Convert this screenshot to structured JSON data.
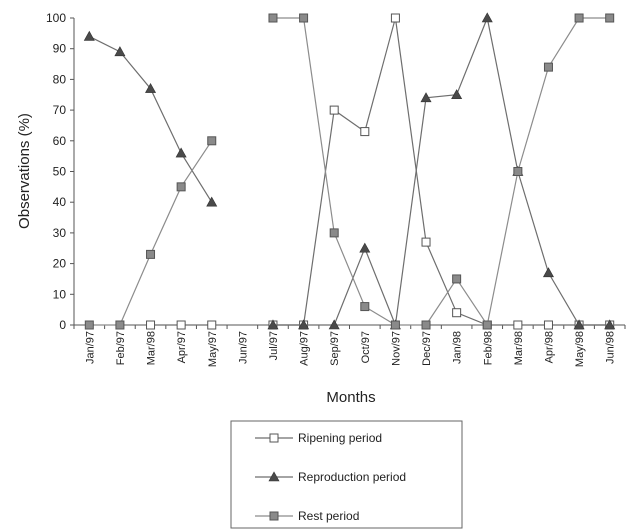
{
  "chart_data": {
    "type": "line",
    "xlabel": "Months",
    "ylabel": "Observations (%)",
    "ylim": [
      0,
      100
    ],
    "yticks": [
      0,
      10,
      20,
      30,
      40,
      50,
      60,
      70,
      80,
      90,
      100
    ],
    "categories": [
      "Jan/97",
      "Feb/97",
      "Mar/98",
      "Apr/97",
      "May/97",
      "Jun/97",
      "Jul/97",
      "Aug/97",
      "Sep/97",
      "Oct/97",
      "Nov/97",
      "Dec/97",
      "Jan/98",
      "Feb/98",
      "Mar/98",
      "Apr/98",
      "May/98",
      "Jun/98"
    ],
    "grid": false,
    "legend_position": "bottom-center",
    "series": [
      {
        "name": "Ripening period",
        "marker": "square-open",
        "color": "#6e6e6e",
        "values": [
          null,
          null,
          0,
          0,
          0,
          null,
          0,
          0,
          70,
          63,
          100,
          27,
          4,
          0,
          0,
          0,
          0,
          0
        ]
      },
      {
        "name": "Reproduction period",
        "marker": "triangle-filled",
        "color": "#6e6e6e",
        "values": [
          94,
          89,
          77,
          56,
          40,
          null,
          0,
          0,
          0,
          25,
          0,
          74,
          75,
          100,
          50,
          17,
          0,
          0
        ]
      },
      {
        "name": "Rest period",
        "marker": "square-filled",
        "color": "#8c8c8c",
        "values": [
          0,
          0,
          23,
          45,
          60,
          null,
          100,
          100,
          30,
          6,
          0,
          0,
          15,
          0,
          50,
          84,
          100,
          100
        ]
      }
    ]
  }
}
